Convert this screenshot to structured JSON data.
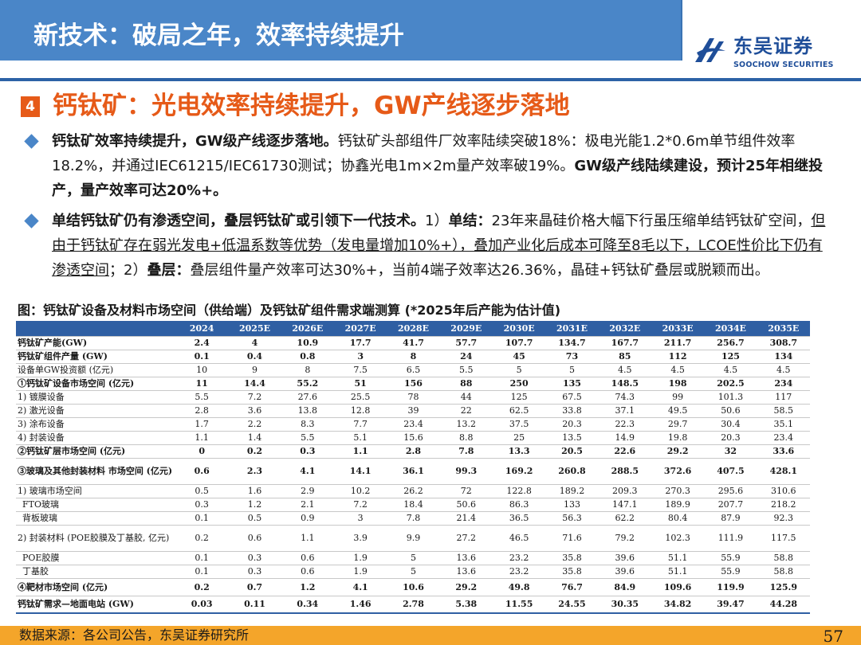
{
  "header": {
    "title": "新技术：破局之年，效率持续提升",
    "logo_cn": "东吴证券",
    "logo_en": "SOOCHOW SECURITIES",
    "accent": "#4a86c8"
  },
  "section": {
    "number": "4",
    "title": "钙钛矿：光电效率持续提升，GW产线逐步落地",
    "color": "#e65a18"
  },
  "bullets": [
    {
      "bold_lead": "钙钛矿效率持续提升，GW级产线逐步落地。",
      "text": "钙钛矿头部组件厂效率陆续突破18%：极电光能1.2*0.6m单节组件效率18.2%，并通过IEC61215/IEC61730测试；协鑫光电1m×2m量产效率破19%。",
      "bold_tail": "GW级产线陆续建设，预计25年相继投产，量产效率可达20%+。"
    },
    {
      "bold_lead": "单结钙钛矿仍有渗透空间，叠层钙钛矿或引领下一代技术。",
      "p1_pre": "1）",
      "p1_bold": "单结：",
      "p1_text": "23年来晶硅价格大幅下行虽压缩单结钙钛矿空间，",
      "p1_underline": "但由于钙钛矿存在弱光发电+低温系数等优势（发电量增加10%+），叠加产业化后成本可降至8毛以下，LCOE性价比下仍有渗透空间",
      "p2_pre": "；2）",
      "p2_bold": "叠层：",
      "p2_text": "叠层组件量产效率可达30%+，当前4端子效率达26.36%，晶硅+钙钛矿叠层或脱颖而出。"
    }
  ],
  "figure_caption": "图：钙钛矿设备及材料市场空间（供给端）及钙钛矿组件需求端测算 (*2025年后产能为估计值)",
  "table": {
    "years": [
      "2024",
      "2025E",
      "2026E",
      "2027E",
      "2028E",
      "2029E",
      "2030E",
      "2031E",
      "2032E",
      "2033E",
      "2034E",
      "2035E"
    ],
    "rows": [
      {
        "label": "钙钛矿产能(GW)",
        "bold": true,
        "values": [
          "2.4",
          "4",
          "10.9",
          "17.7",
          "41.7",
          "57.7",
          "107.7",
          "134.7",
          "167.7",
          "211.7",
          "256.7",
          "308.7"
        ]
      },
      {
        "label": "钙钛矿组件产量 (GW)",
        "bold": true,
        "values": [
          "0.1",
          "0.4",
          "0.8",
          "3",
          "8",
          "24",
          "45",
          "73",
          "85",
          "112",
          "125",
          "134"
        ]
      },
      {
        "label": "设备单GW投资额 (亿元)",
        "bold": false,
        "values": [
          "10",
          "9",
          "8",
          "7.5",
          "6.5",
          "5.5",
          "5",
          "5",
          "4.5",
          "4.5",
          "4.5",
          "4.5"
        ]
      },
      {
        "label": "①钙钛矿设备市场空间 (亿元)",
        "bold": true,
        "values": [
          "11",
          "14.4",
          "55.2",
          "51",
          "156",
          "88",
          "250",
          "135",
          "148.5",
          "198",
          "202.5",
          "234"
        ]
      },
      {
        "label": "1) 镀膜设备",
        "bold": false,
        "values": [
          "5.5",
          "7.2",
          "27.6",
          "25.5",
          "78",
          "44",
          "125",
          "67.5",
          "74.3",
          "99",
          "101.3",
          "117"
        ]
      },
      {
        "label": "2) 激光设备",
        "bold": false,
        "values": [
          "2.8",
          "3.6",
          "13.8",
          "12.8",
          "39",
          "22",
          "62.5",
          "33.8",
          "37.1",
          "49.5",
          "50.6",
          "58.5"
        ]
      },
      {
        "label": "3) 涂布设备",
        "bold": false,
        "values": [
          "1.7",
          "2.2",
          "8.3",
          "7.7",
          "23.4",
          "13.2",
          "37.5",
          "20.3",
          "22.3",
          "29.7",
          "30.4",
          "35.1"
        ]
      },
      {
        "label": "4) 封装设备",
        "bold": false,
        "values": [
          "1.1",
          "1.4",
          "5.5",
          "5.1",
          "15.6",
          "8.8",
          "25",
          "13.5",
          "14.9",
          "19.8",
          "20.3",
          "23.4"
        ]
      },
      {
        "label": "②钙钛矿层市场空间 (亿元)",
        "bold": true,
        "values": [
          "0",
          "0.2",
          "0.3",
          "1.1",
          "2.8",
          "7.8",
          "13.3",
          "20.5",
          "22.6",
          "29.2",
          "32",
          "33.6"
        ]
      },
      {
        "label": "③玻璃及其他封装材料 市场空间 (亿元)",
        "bold": true,
        "tall": true,
        "values": [
          "0.6",
          "2.3",
          "4.1",
          "14.1",
          "36.1",
          "99.3",
          "169.2",
          "260.8",
          "288.5",
          "372.6",
          "407.5",
          "428.1"
        ]
      },
      {
        "label": "1) 玻璃市场空间",
        "bold": false,
        "values": [
          "0.5",
          "1.6",
          "2.9",
          "10.2",
          "26.2",
          "72",
          "122.8",
          "189.2",
          "209.3",
          "270.3",
          "295.6",
          "310.6"
        ]
      },
      {
        "label": "FTO玻璃",
        "bold": false,
        "indent": true,
        "values": [
          "0.3",
          "1.2",
          "2.1",
          "7.2",
          "18.4",
          "50.6",
          "86.3",
          "133",
          "147.1",
          "189.9",
          "207.7",
          "218.2"
        ]
      },
      {
        "label": "背板玻璃",
        "bold": false,
        "indent": true,
        "values": [
          "0.1",
          "0.5",
          "0.9",
          "3",
          "7.8",
          "21.4",
          "36.5",
          "56.3",
          "62.2",
          "80.4",
          "87.9",
          "92.3"
        ]
      },
      {
        "label": "2) 封装材料 (POE胶膜及丁基胶, 亿元)",
        "bold": false,
        "tall": true,
        "values": [
          "0.2",
          "0.6",
          "1.1",
          "3.9",
          "9.9",
          "27.2",
          "46.5",
          "71.6",
          "79.2",
          "102.3",
          "111.9",
          "117.5"
        ]
      },
      {
        "label": "POE胶膜",
        "bold": false,
        "indent": true,
        "values": [
          "0.1",
          "0.3",
          "0.6",
          "1.9",
          "5",
          "13.6",
          "23.2",
          "35.8",
          "39.6",
          "51.1",
          "55.9",
          "58.8"
        ]
      },
      {
        "label": "丁基胶",
        "bold": false,
        "indent": true,
        "values": [
          "0.1",
          "0.3",
          "0.6",
          "1.9",
          "5",
          "13.6",
          "23.2",
          "35.8",
          "39.6",
          "51.1",
          "55.9",
          "58.8"
        ]
      },
      {
        "label": "④靶材市场空间 (亿元)",
        "bold": true,
        "medium": true,
        "values": [
          "0.2",
          "0.7",
          "1.2",
          "4.1",
          "10.6",
          "29.2",
          "49.8",
          "76.7",
          "84.9",
          "109.6",
          "119.9",
          "125.9"
        ]
      },
      {
        "label": "钙钛矿需求—地面电站 (GW)",
        "bold": true,
        "medium": true,
        "values": [
          "0.03",
          "0.11",
          "0.34",
          "1.46",
          "2.78",
          "5.38",
          "11.55",
          "24.55",
          "30.35",
          "34.82",
          "39.47",
          "44.28"
        ]
      }
    ]
  },
  "footer": {
    "source": "数据来源：各公司公告，东吴证券研究所",
    "page": "57",
    "bar_color": "#f4a52a"
  }
}
